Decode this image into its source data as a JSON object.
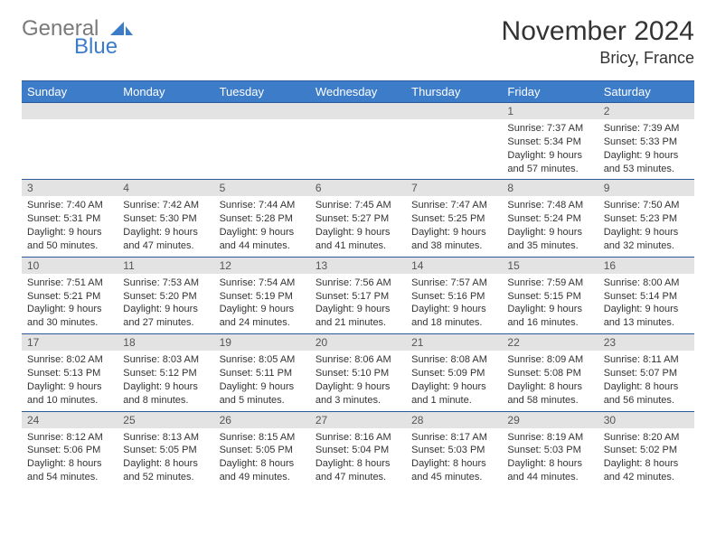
{
  "brand": {
    "part1": "General",
    "part2": "Blue"
  },
  "title": "November 2024",
  "location": "Bricy, France",
  "colors": {
    "header_bg": "#3d7cc9",
    "header_text": "#ffffff",
    "daynum_bg": "#e3e3e3",
    "border": "#2a5a9a",
    "brand_gray": "#7a7a7a",
    "brand_blue": "#3d7cc9"
  },
  "weekdays": [
    "Sunday",
    "Monday",
    "Tuesday",
    "Wednesday",
    "Thursday",
    "Friday",
    "Saturday"
  ],
  "weeks": [
    [
      {
        "n": "",
        "sr": "",
        "ss": "",
        "dl": ""
      },
      {
        "n": "",
        "sr": "",
        "ss": "",
        "dl": ""
      },
      {
        "n": "",
        "sr": "",
        "ss": "",
        "dl": ""
      },
      {
        "n": "",
        "sr": "",
        "ss": "",
        "dl": ""
      },
      {
        "n": "",
        "sr": "",
        "ss": "",
        "dl": ""
      },
      {
        "n": "1",
        "sr": "Sunrise: 7:37 AM",
        "ss": "Sunset: 5:34 PM",
        "dl": "Daylight: 9 hours and 57 minutes."
      },
      {
        "n": "2",
        "sr": "Sunrise: 7:39 AM",
        "ss": "Sunset: 5:33 PM",
        "dl": "Daylight: 9 hours and 53 minutes."
      }
    ],
    [
      {
        "n": "3",
        "sr": "Sunrise: 7:40 AM",
        "ss": "Sunset: 5:31 PM",
        "dl": "Daylight: 9 hours and 50 minutes."
      },
      {
        "n": "4",
        "sr": "Sunrise: 7:42 AM",
        "ss": "Sunset: 5:30 PM",
        "dl": "Daylight: 9 hours and 47 minutes."
      },
      {
        "n": "5",
        "sr": "Sunrise: 7:44 AM",
        "ss": "Sunset: 5:28 PM",
        "dl": "Daylight: 9 hours and 44 minutes."
      },
      {
        "n": "6",
        "sr": "Sunrise: 7:45 AM",
        "ss": "Sunset: 5:27 PM",
        "dl": "Daylight: 9 hours and 41 minutes."
      },
      {
        "n": "7",
        "sr": "Sunrise: 7:47 AM",
        "ss": "Sunset: 5:25 PM",
        "dl": "Daylight: 9 hours and 38 minutes."
      },
      {
        "n": "8",
        "sr": "Sunrise: 7:48 AM",
        "ss": "Sunset: 5:24 PM",
        "dl": "Daylight: 9 hours and 35 minutes."
      },
      {
        "n": "9",
        "sr": "Sunrise: 7:50 AM",
        "ss": "Sunset: 5:23 PM",
        "dl": "Daylight: 9 hours and 32 minutes."
      }
    ],
    [
      {
        "n": "10",
        "sr": "Sunrise: 7:51 AM",
        "ss": "Sunset: 5:21 PM",
        "dl": "Daylight: 9 hours and 30 minutes."
      },
      {
        "n": "11",
        "sr": "Sunrise: 7:53 AM",
        "ss": "Sunset: 5:20 PM",
        "dl": "Daylight: 9 hours and 27 minutes."
      },
      {
        "n": "12",
        "sr": "Sunrise: 7:54 AM",
        "ss": "Sunset: 5:19 PM",
        "dl": "Daylight: 9 hours and 24 minutes."
      },
      {
        "n": "13",
        "sr": "Sunrise: 7:56 AM",
        "ss": "Sunset: 5:17 PM",
        "dl": "Daylight: 9 hours and 21 minutes."
      },
      {
        "n": "14",
        "sr": "Sunrise: 7:57 AM",
        "ss": "Sunset: 5:16 PM",
        "dl": "Daylight: 9 hours and 18 minutes."
      },
      {
        "n": "15",
        "sr": "Sunrise: 7:59 AM",
        "ss": "Sunset: 5:15 PM",
        "dl": "Daylight: 9 hours and 16 minutes."
      },
      {
        "n": "16",
        "sr": "Sunrise: 8:00 AM",
        "ss": "Sunset: 5:14 PM",
        "dl": "Daylight: 9 hours and 13 minutes."
      }
    ],
    [
      {
        "n": "17",
        "sr": "Sunrise: 8:02 AM",
        "ss": "Sunset: 5:13 PM",
        "dl": "Daylight: 9 hours and 10 minutes."
      },
      {
        "n": "18",
        "sr": "Sunrise: 8:03 AM",
        "ss": "Sunset: 5:12 PM",
        "dl": "Daylight: 9 hours and 8 minutes."
      },
      {
        "n": "19",
        "sr": "Sunrise: 8:05 AM",
        "ss": "Sunset: 5:11 PM",
        "dl": "Daylight: 9 hours and 5 minutes."
      },
      {
        "n": "20",
        "sr": "Sunrise: 8:06 AM",
        "ss": "Sunset: 5:10 PM",
        "dl": "Daylight: 9 hours and 3 minutes."
      },
      {
        "n": "21",
        "sr": "Sunrise: 8:08 AM",
        "ss": "Sunset: 5:09 PM",
        "dl": "Daylight: 9 hours and 1 minute."
      },
      {
        "n": "22",
        "sr": "Sunrise: 8:09 AM",
        "ss": "Sunset: 5:08 PM",
        "dl": "Daylight: 8 hours and 58 minutes."
      },
      {
        "n": "23",
        "sr": "Sunrise: 8:11 AM",
        "ss": "Sunset: 5:07 PM",
        "dl": "Daylight: 8 hours and 56 minutes."
      }
    ],
    [
      {
        "n": "24",
        "sr": "Sunrise: 8:12 AM",
        "ss": "Sunset: 5:06 PM",
        "dl": "Daylight: 8 hours and 54 minutes."
      },
      {
        "n": "25",
        "sr": "Sunrise: 8:13 AM",
        "ss": "Sunset: 5:05 PM",
        "dl": "Daylight: 8 hours and 52 minutes."
      },
      {
        "n": "26",
        "sr": "Sunrise: 8:15 AM",
        "ss": "Sunset: 5:05 PM",
        "dl": "Daylight: 8 hours and 49 minutes."
      },
      {
        "n": "27",
        "sr": "Sunrise: 8:16 AM",
        "ss": "Sunset: 5:04 PM",
        "dl": "Daylight: 8 hours and 47 minutes."
      },
      {
        "n": "28",
        "sr": "Sunrise: 8:17 AM",
        "ss": "Sunset: 5:03 PM",
        "dl": "Daylight: 8 hours and 45 minutes."
      },
      {
        "n": "29",
        "sr": "Sunrise: 8:19 AM",
        "ss": "Sunset: 5:03 PM",
        "dl": "Daylight: 8 hours and 44 minutes."
      },
      {
        "n": "30",
        "sr": "Sunrise: 8:20 AM",
        "ss": "Sunset: 5:02 PM",
        "dl": "Daylight: 8 hours and 42 minutes."
      }
    ]
  ]
}
